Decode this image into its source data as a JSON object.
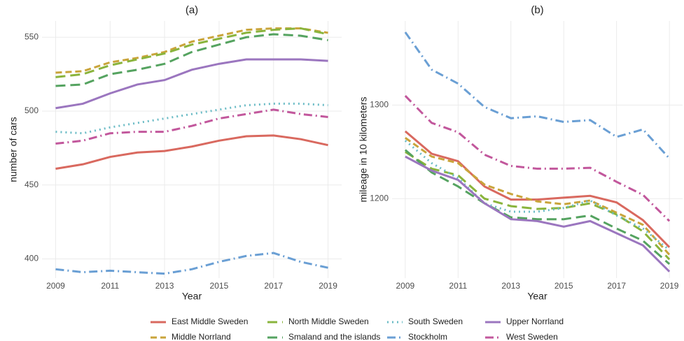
{
  "chart_data": [
    {
      "type": "line",
      "title": "(a)",
      "x_label": "Year",
      "y_label": "number of cars",
      "x": [
        2009,
        2010,
        2011,
        2012,
        2013,
        2014,
        2015,
        2016,
        2017,
        2018,
        2019
      ],
      "xlim": [
        2008.5,
        2019.5
      ],
      "xticks": [
        2009,
        2011,
        2013,
        2015,
        2017,
        2019
      ],
      "ylim": [
        387,
        561
      ],
      "yticks": [
        400,
        450,
        500,
        550
      ],
      "grid": true,
      "series": [
        {
          "name": "East Middle Sweden",
          "color": "#d9695f",
          "linestyle": "solid",
          "values": [
            461,
            464,
            469,
            472,
            473,
            476,
            480,
            483,
            483.5,
            481,
            477
          ]
        },
        {
          "name": "Middle Norrland",
          "color": "#c9a43a",
          "linestyle": "dashed",
          "values": [
            526,
            527,
            533,
            536,
            540,
            547,
            551,
            555,
            556,
            556,
            553
          ]
        },
        {
          "name": "North Middle Sweden",
          "color": "#8ab43c",
          "linestyle": "longdash",
          "values": [
            523,
            525,
            531,
            535,
            539,
            545,
            549,
            553,
            555,
            556,
            552
          ]
        },
        {
          "name": "Smaland and the islands",
          "color": "#55a360",
          "linestyle": "longdash",
          "values": [
            517,
            518,
            525,
            528,
            532,
            540,
            545,
            550,
            552,
            551,
            548
          ]
        },
        {
          "name": "South Sweden",
          "color": "#6cbcc6",
          "linestyle": "dotted",
          "values": [
            486,
            485,
            489,
            492,
            495,
            498,
            501,
            504,
            505,
            505,
            504
          ]
        },
        {
          "name": "Stockholm",
          "color": "#6a9fd4",
          "linestyle": "dotdash",
          "values": [
            393,
            391,
            392,
            391,
            390,
            393,
            398,
            402,
            404,
            398,
            394
          ]
        },
        {
          "name": "Upper Norrland",
          "color": "#9b76bf",
          "linestyle": "solid",
          "values": [
            502,
            505,
            512,
            518,
            521,
            528,
            532,
            535,
            535,
            535,
            534
          ]
        },
        {
          "name": "West Sweden",
          "color": "#c2579c",
          "linestyle": "dotdash",
          "values": [
            478,
            480,
            485,
            486,
            486,
            490,
            495,
            498,
            501,
            498,
            496
          ]
        }
      ]
    },
    {
      "type": "line",
      "title": "(b)",
      "x_label": "Year",
      "y_label": "mileage in 10 kilometers",
      "x": [
        2009,
        2010,
        2011,
        2012,
        2013,
        2014,
        2015,
        2016,
        2017,
        2018,
        2019
      ],
      "xlim": [
        2008.5,
        2019.5
      ],
      "xticks": [
        2009,
        2011,
        2013,
        2015,
        2017,
        2019
      ],
      "ylim": [
        1115,
        1390
      ],
      "yticks": [
        1200,
        1300
      ],
      "grid": true,
      "series": [
        {
          "color": "#d9695f",
          "linestyle": "solid",
          "values": [
            1272,
            1248,
            1240,
            1213,
            1199,
            1199,
            1201,
            1203,
            1196,
            1177,
            1148
          ]
        },
        {
          "color": "#c9a43a",
          "linestyle": "dashed",
          "values": [
            1265,
            1245,
            1238,
            1215,
            1205,
            1197,
            1194,
            1198,
            1185,
            1172,
            1140
          ]
        },
        {
          "color": "#8ab43c",
          "linestyle": "longdash",
          "values": [
            1250,
            1232,
            1225,
            1200,
            1192,
            1189,
            1190,
            1195,
            1183,
            1165,
            1135
          ]
        },
        {
          "color": "#55a360",
          "linestyle": "longdash",
          "values": [
            1252,
            1228,
            1213,
            1195,
            1180,
            1178,
            1178,
            1182,
            1168,
            1155,
            1130
          ]
        },
        {
          "color": "#6cbcc6",
          "linestyle": "dotted",
          "values": [
            1262,
            1238,
            1222,
            1195,
            1186,
            1186,
            1190,
            1198,
            1182,
            1168,
            1145
          ]
        },
        {
          "color": "#6a9fd4",
          "linestyle": "dotdash",
          "values": [
            1378,
            1338,
            1323,
            1298,
            1286,
            1288,
            1282,
            1284,
            1266,
            1274,
            1243
          ]
        },
        {
          "color": "#9b76bf",
          "linestyle": "solid",
          "values": [
            1245,
            1230,
            1220,
            1195,
            1178,
            1176,
            1170,
            1176,
            1163,
            1150,
            1122
          ]
        },
        {
          "color": "#c2579c",
          "linestyle": "dotdash",
          "values": [
            1310,
            1281,
            1271,
            1247,
            1235,
            1232,
            1232,
            1233,
            1218,
            1204,
            1176
          ]
        }
      ]
    }
  ]
}
